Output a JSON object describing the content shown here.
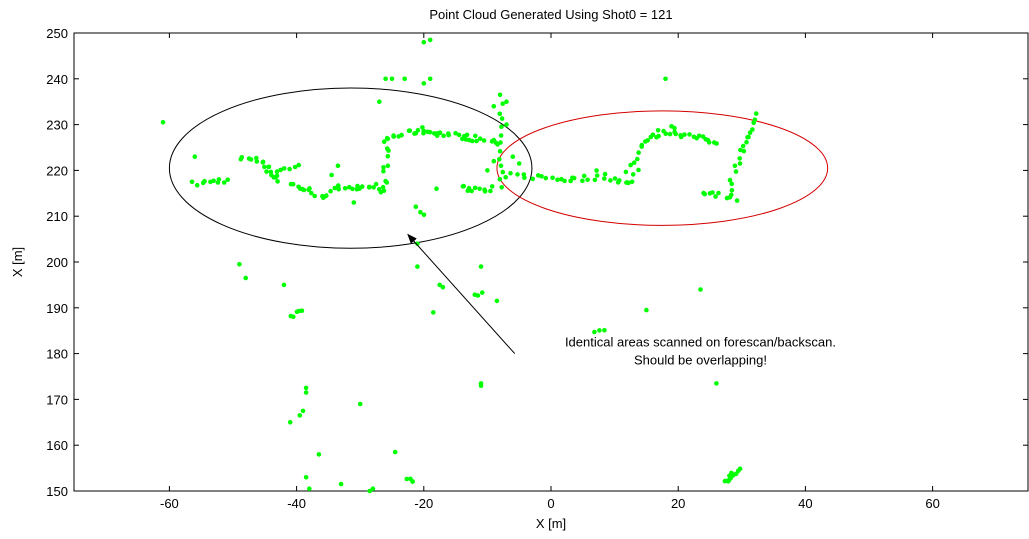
{
  "chart_data": {
    "type": "scatter",
    "title": "Point Cloud Generated Using Shot0 = 121",
    "xlabel": "X [m]",
    "ylabel": "X [m]",
    "xlim": [
      -75,
      75
    ],
    "ylim": [
      150,
      250
    ],
    "xticks": [
      -60,
      -40,
      -20,
      0,
      20,
      40,
      60
    ],
    "yticks": [
      150,
      160,
      170,
      180,
      190,
      200,
      210,
      220,
      230,
      240,
      250
    ],
    "grid": false,
    "legend": "none",
    "point_color": "#00ff00",
    "series": [
      {
        "clusters": [
          {
            "x0": -56,
            "y0": 217,
            "x1": -51,
            "y1": 218,
            "n": 10
          },
          {
            "x0": -49,
            "y0": 222.5,
            "x1": -45,
            "y1": 222,
            "n": 8
          },
          {
            "x0": -45,
            "y0": 221,
            "x1": -43,
            "y1": 218,
            "n": 10
          },
          {
            "x0": -43,
            "y0": 220,
            "x1": -40,
            "y1": 221,
            "n": 6
          },
          {
            "x0": -41,
            "y0": 217,
            "x1": -35,
            "y1": 214,
            "n": 14
          },
          {
            "x0": -35,
            "y0": 215,
            "x1": -33,
            "y1": 217,
            "n": 4
          },
          {
            "x0": -33,
            "y0": 216.5,
            "x1": -26,
            "y1": 215.5,
            "n": 14
          },
          {
            "x0": -26,
            "y0": 216,
            "x1": -26,
            "y1": 226,
            "n": 10
          },
          {
            "x0": -26,
            "y0": 227,
            "x1": -20,
            "y1": 229,
            "n": 14
          },
          {
            "x0": -20,
            "y0": 228.5,
            "x1": -12,
            "y1": 227,
            "n": 18
          },
          {
            "x0": -12,
            "y0": 227,
            "x1": -8,
            "y1": 226,
            "n": 8
          },
          {
            "x0": -14,
            "y0": 216,
            "x1": -9,
            "y1": 216,
            "n": 12
          },
          {
            "x0": -8,
            "y0": 216,
            "x1": -8,
            "y1": 234,
            "n": 12
          },
          {
            "x0": -7,
            "y0": 219,
            "x1": 3,
            "y1": 218,
            "n": 14
          },
          {
            "x0": 3,
            "y0": 218,
            "x1": 7,
            "y1": 218.5,
            "n": 6
          },
          {
            "x0": 7,
            "y0": 219.5,
            "x1": 12,
            "y1": 217,
            "n": 10
          },
          {
            "x0": 12,
            "y0": 217,
            "x1": 14,
            "y1": 220,
            "n": 4
          },
          {
            "x0": 12,
            "y0": 220,
            "x1": 14,
            "y1": 225,
            "n": 6
          },
          {
            "x0": 14,
            "y0": 226,
            "x1": 19,
            "y1": 229.5,
            "n": 12
          },
          {
            "x0": 19,
            "y0": 228.5,
            "x1": 26,
            "y1": 226,
            "n": 16
          },
          {
            "x0": 24,
            "y0": 215.5,
            "x1": 29,
            "y1": 214,
            "n": 10
          },
          {
            "x0": 28,
            "y0": 216,
            "x1": 30,
            "y1": 224,
            "n": 8
          },
          {
            "x0": 30,
            "y0": 224,
            "x1": 32,
            "y1": 232,
            "n": 10
          },
          {
            "x0": -40.5,
            "y0": 188.5,
            "x1": -39.5,
            "y1": 189,
            "n": 5
          },
          {
            "x0": -21,
            "y0": 212,
            "x1": -20,
            "y1": 210,
            "n": 3
          },
          {
            "x0": -12,
            "y0": 193,
            "x1": -11,
            "y1": 193,
            "n": 3
          },
          {
            "x0": 7,
            "y0": 185,
            "x1": 8,
            "y1": 185,
            "n": 3
          },
          {
            "x0": -22.5,
            "y0": 152.5,
            "x1": -21.5,
            "y1": 152.5,
            "n": 4
          },
          {
            "x0": 27.5,
            "y0": 152,
            "x1": 29.5,
            "y1": 154.5,
            "n": 14
          }
        ],
        "points": [
          [
            -61,
            230.5
          ],
          [
            -56,
            223
          ],
          [
            -49,
            199.5
          ],
          [
            -48,
            196.5
          ],
          [
            -42,
            195
          ],
          [
            -41,
            165
          ],
          [
            -39.5,
            166.5
          ],
          [
            -39,
            167.5
          ],
          [
            -38.5,
            171.5
          ],
          [
            -38.5,
            172.5
          ],
          [
            -36.5,
            158
          ],
          [
            -38.5,
            153
          ],
          [
            -38,
            150.5
          ],
          [
            -33,
            151.5
          ],
          [
            -31,
            213
          ],
          [
            -30,
            169
          ],
          [
            -28.5,
            150
          ],
          [
            -28,
            150.5
          ],
          [
            -27.5,
            217
          ],
          [
            -27,
            235
          ],
          [
            -26,
            240
          ],
          [
            -25,
            240
          ],
          [
            -23,
            240
          ],
          [
            -24.5,
            158.5
          ],
          [
            -21,
            204
          ],
          [
            -21,
            199
          ],
          [
            -20,
            239
          ],
          [
            -19,
            240
          ],
          [
            -20,
            248
          ],
          [
            -19,
            248.5
          ],
          [
            -18,
            216
          ],
          [
            -17.5,
            195
          ],
          [
            -17,
            194.5
          ],
          [
            -18.5,
            189
          ],
          [
            -11,
            199
          ],
          [
            -11,
            173.5
          ],
          [
            -11,
            173
          ],
          [
            -8.5,
            191.5
          ],
          [
            -8,
            236.5
          ],
          [
            -7,
            235
          ],
          [
            -7,
            230
          ],
          [
            -6,
            223
          ],
          [
            -5,
            221.5
          ],
          [
            15,
            189.5
          ],
          [
            18,
            240
          ],
          [
            23.5,
            194
          ],
          [
            26,
            173.5
          ],
          [
            -34.5,
            219
          ],
          [
            -33.5,
            221
          ],
          [
            -9,
            234
          ],
          [
            -9,
            222
          ],
          [
            -10,
            220
          ]
        ]
      }
    ],
    "annotations": [
      {
        "lines": [
          "Identical areas scanned on forescan/backscan.",
          "Should be overlapping!"
        ],
        "text_anchor": [
          23.5,
          181.5
        ],
        "arrow_from": [
          -5.7,
          180
        ],
        "arrow_to": [
          -22.5,
          206
        ]
      }
    ],
    "ellipses": [
      {
        "cx": -31.5,
        "cy": 220.5,
        "rx": 28.5,
        "ry": 17.5,
        "color": "#000000"
      },
      {
        "cx": 17.5,
        "cy": 220.5,
        "rx": 26,
        "ry": 12.5,
        "color": "#d40000"
      }
    ]
  }
}
